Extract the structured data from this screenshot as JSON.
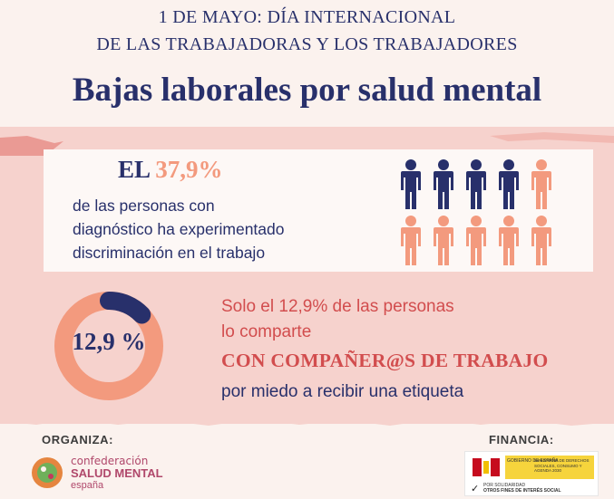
{
  "header": {
    "subtitle_line1": "1 DE MAYO: DÍA INTERNACIONAL",
    "subtitle_line2": "DE LAS TRABAJADORAS Y LOS TRABAJADORES",
    "title": "Bajas laborales por salud mental"
  },
  "stat1": {
    "prefix": "EL",
    "value": "37,9%",
    "description_line1": "de las personas con",
    "description_line2": "diagnóstico ha experimentado",
    "description_line3": "discriminación en el trabajo",
    "people_total": 10,
    "people_highlighted": 4
  },
  "stat2": {
    "donut_label": "12,9 %",
    "donut_fraction": 0.129,
    "line1": "Solo el 12,9% de las personas",
    "line2": "lo comparte",
    "line3": "CON COMPAÑER@S DE TRABAJO",
    "line4": "por miedo a recibir una etiqueta"
  },
  "footer": {
    "organiza_label": "ORGANIZA:",
    "financia_label": "FINANCIA:",
    "org_line1": "confederación",
    "org_line2": "SALUD MENTAL",
    "org_line3": "españa",
    "gov_line1": "GOBIERNO DE ESPAÑA",
    "gov_line2": "MINISTERIO DE DERECHOS SOCIALES, CONSUMO Y AGENDA 2030",
    "gov_line3": "POR SOLIDARIDAD",
    "gov_line4": "OTROS FINES DE INTERÉS SOCIAL"
  },
  "colors": {
    "navy": "#28306b",
    "salmon": "#f39a7e",
    "red": "#d24d4e",
    "pink_band": "#f6d2cd"
  }
}
